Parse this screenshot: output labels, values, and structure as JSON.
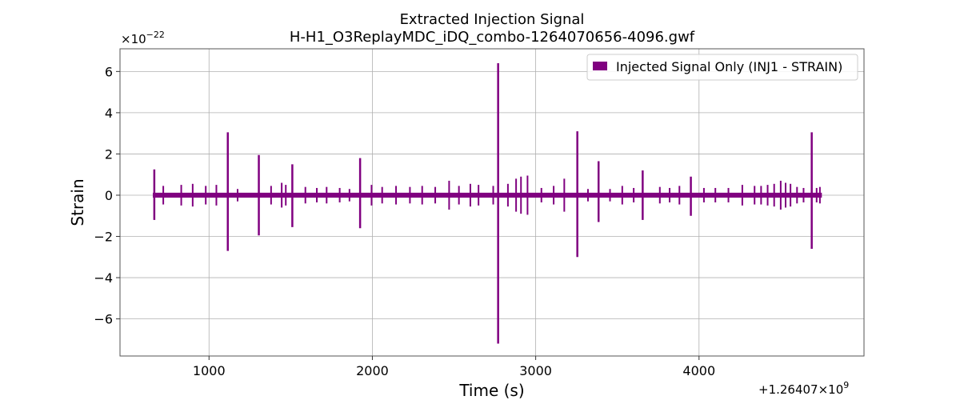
{
  "chart_data": {
    "type": "line",
    "title": "Extracted Injection Signal",
    "subtitle": "H-H1_O3ReplayMDC_iDQ_combo-1264070656-4096.gwf",
    "xlabel": "Time (s)",
    "ylabel": "Strain",
    "x_offset_label": "+1.26407×10",
    "x_offset_exp": "9",
    "y_scale_label": "×10",
    "y_scale_exp": "−22",
    "xlim": [
      455,
      5010
    ],
    "ylim": [
      -7.8,
      7.1
    ],
    "x_ticks": [
      1000,
      2000,
      3000,
      4000
    ],
    "x_tick_labels": [
      "1000",
      "2000",
      "3000",
      "4000"
    ],
    "y_ticks": [
      -6,
      -4,
      -2,
      0,
      2,
      4,
      6
    ],
    "y_tick_labels": [
      "−6",
      "−4",
      "−2",
      "0",
      "2",
      "4",
      "6"
    ],
    "grid": true,
    "legend_position": "top-right",
    "series": [
      {
        "name": "Injected Signal Only (INJ1 - STRAIN)",
        "color": "#800080",
        "x_range": [
          656,
          4752
        ],
        "baseline_amplitude": 0.12,
        "events": [
          {
            "t": 665,
            "pos": 1.25,
            "neg": -1.2
          },
          {
            "t": 1115,
            "pos": 3.05,
            "neg": -2.7
          },
          {
            "t": 1305,
            "pos": 1.95,
            "neg": -1.95
          },
          {
            "t": 1510,
            "pos": 1.5,
            "neg": -1.55
          },
          {
            "t": 1925,
            "pos": 1.8,
            "neg": -1.6
          },
          {
            "t": 2770,
            "pos": 6.4,
            "neg": -7.2
          },
          {
            "t": 3255,
            "pos": 3.1,
            "neg": -3.0
          },
          {
            "t": 3385,
            "pos": 1.65,
            "neg": -1.3
          },
          {
            "t": 3655,
            "pos": 1.2,
            "neg": -1.2
          },
          {
            "t": 3950,
            "pos": 0.9,
            "neg": -1.0
          },
          {
            "t": 4690,
            "pos": 3.05,
            "neg": -2.6
          }
        ],
        "bursts": [
          {
            "t": 720,
            "amp": 0.45
          },
          {
            "t": 830,
            "amp": 0.5
          },
          {
            "t": 900,
            "amp": 0.55
          },
          {
            "t": 980,
            "amp": 0.45
          },
          {
            "t": 1045,
            "amp": 0.5
          },
          {
            "t": 1175,
            "amp": 0.3
          },
          {
            "t": 1380,
            "amp": 0.45
          },
          {
            "t": 1445,
            "amp": 0.6
          },
          {
            "t": 1470,
            "amp": 0.5
          },
          {
            "t": 1590,
            "amp": 0.4
          },
          {
            "t": 1660,
            "amp": 0.35
          },
          {
            "t": 1720,
            "amp": 0.4
          },
          {
            "t": 1800,
            "amp": 0.35
          },
          {
            "t": 1860,
            "amp": 0.3
          },
          {
            "t": 1995,
            "amp": 0.5
          },
          {
            "t": 2060,
            "amp": 0.4
          },
          {
            "t": 2145,
            "amp": 0.45
          },
          {
            "t": 2230,
            "amp": 0.4
          },
          {
            "t": 2305,
            "amp": 0.45
          },
          {
            "t": 2385,
            "amp": 0.4
          },
          {
            "t": 2470,
            "amp": 0.7
          },
          {
            "t": 2530,
            "amp": 0.45
          },
          {
            "t": 2600,
            "amp": 0.55
          },
          {
            "t": 2650,
            "amp": 0.5
          },
          {
            "t": 2740,
            "amp": 0.45
          },
          {
            "t": 2830,
            "amp": 0.55
          },
          {
            "t": 2880,
            "amp": 0.8
          },
          {
            "t": 2910,
            "amp": 0.9
          },
          {
            "t": 2950,
            "amp": 0.95
          },
          {
            "t": 3035,
            "amp": 0.35
          },
          {
            "t": 3110,
            "amp": 0.45
          },
          {
            "t": 3175,
            "amp": 0.8
          },
          {
            "t": 3320,
            "amp": 0.3
          },
          {
            "t": 3455,
            "amp": 0.3
          },
          {
            "t": 3530,
            "amp": 0.45
          },
          {
            "t": 3600,
            "amp": 0.35
          },
          {
            "t": 3760,
            "amp": 0.4
          },
          {
            "t": 3820,
            "amp": 0.35
          },
          {
            "t": 3880,
            "amp": 0.45
          },
          {
            "t": 4030,
            "amp": 0.35
          },
          {
            "t": 4100,
            "amp": 0.35
          },
          {
            "t": 4180,
            "amp": 0.35
          },
          {
            "t": 4265,
            "amp": 0.5
          },
          {
            "t": 4340,
            "amp": 0.45
          },
          {
            "t": 4380,
            "amp": 0.45
          },
          {
            "t": 4420,
            "amp": 0.5
          },
          {
            "t": 4460,
            "amp": 0.55
          },
          {
            "t": 4500,
            "amp": 0.7
          },
          {
            "t": 4530,
            "amp": 0.6
          },
          {
            "t": 4560,
            "amp": 0.55
          },
          {
            "t": 4600,
            "amp": 0.4
          },
          {
            "t": 4640,
            "amp": 0.35
          },
          {
            "t": 4720,
            "amp": 0.35
          },
          {
            "t": 4740,
            "amp": 0.4
          }
        ]
      }
    ]
  }
}
